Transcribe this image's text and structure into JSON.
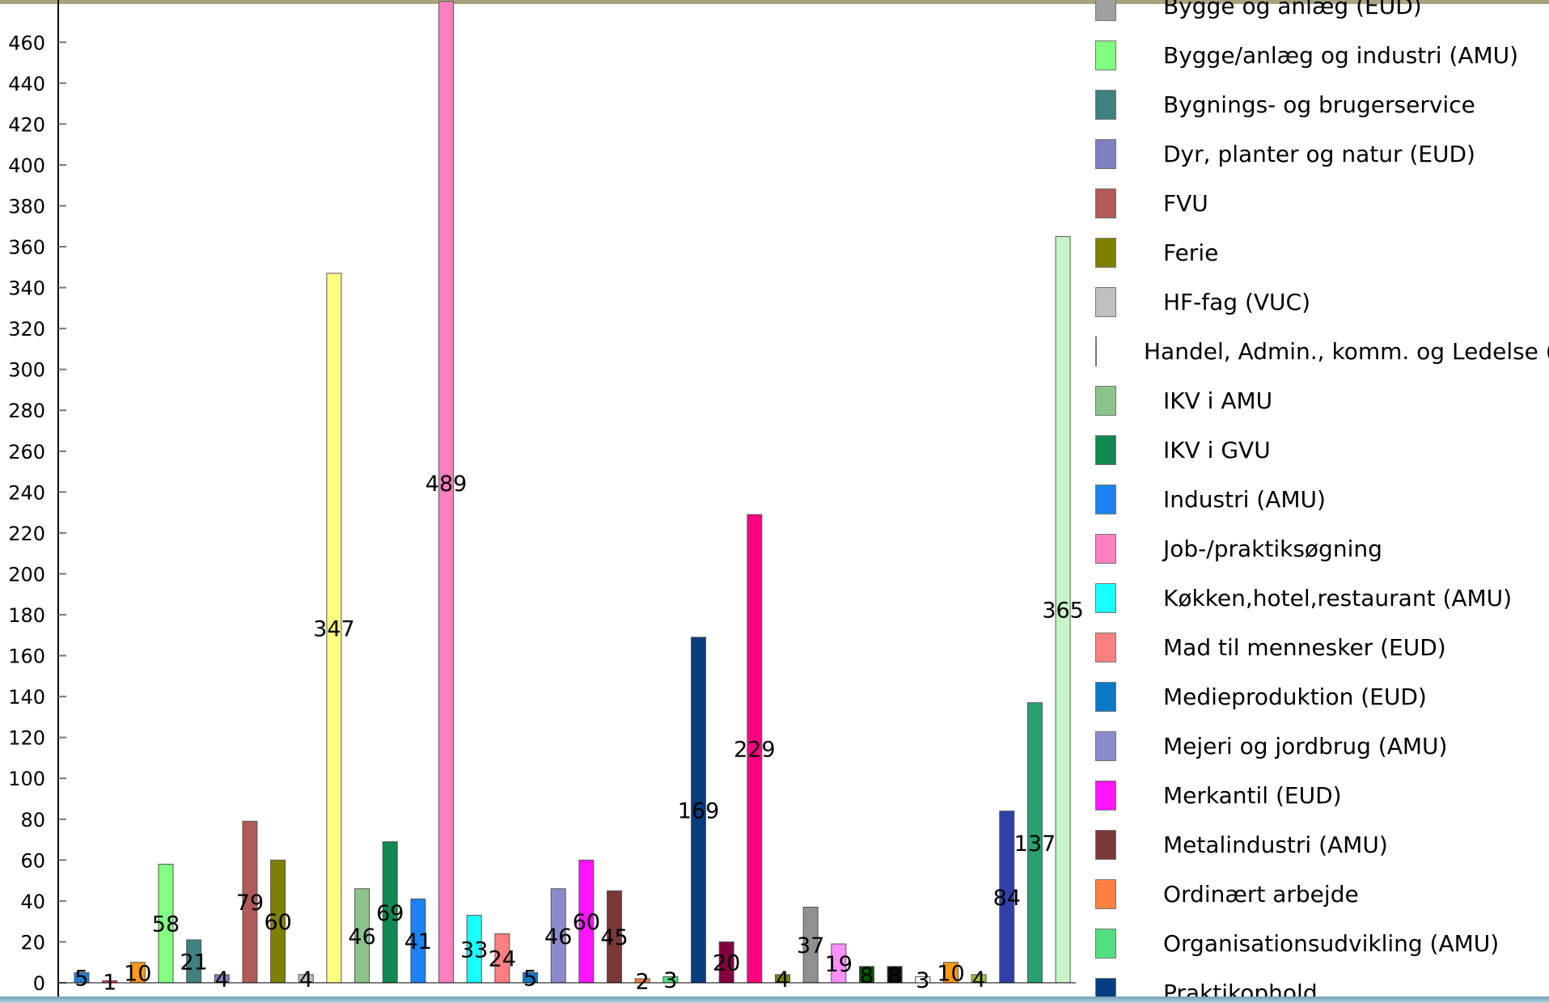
{
  "chart_data": {
    "type": "bar",
    "title": "",
    "xlabel": "",
    "ylabel": "",
    "ylim": [
      0,
      470
    ],
    "yticks": [
      0,
      20,
      40,
      60,
      80,
      100,
      120,
      140,
      160,
      180,
      200,
      220,
      240,
      260,
      280,
      300,
      320,
      340,
      360,
      380,
      400,
      420,
      440,
      460
    ],
    "grid": false,
    "legend_position": "right",
    "bars": [
      {
        "value": 5,
        "label": "5",
        "color": "#1f7fd1"
      },
      {
        "value": 1,
        "label": "1",
        "color": "#e8343c"
      },
      {
        "value": 10,
        "label": "10",
        "color": "#ff9a16"
      },
      {
        "value": 58,
        "label": "58",
        "color": "#82ff82"
      },
      {
        "value": 21,
        "label": "21",
        "color": "#3f8080"
      },
      {
        "value": 4,
        "label": "4",
        "color": "#8080c0"
      },
      {
        "value": 79,
        "label": "79",
        "color": "#b05a5a"
      },
      {
        "value": 60,
        "label": "60",
        "color": "#808000"
      },
      {
        "value": 4,
        "label": "4",
        "color": "#c0c0c0"
      },
      {
        "value": 347,
        "label": "347",
        "color": "#ffff80"
      },
      {
        "value": 46,
        "label": "46",
        "color": "#8cc48c"
      },
      {
        "value": 69,
        "label": "69",
        "color": "#108850"
      },
      {
        "value": 41,
        "label": "41",
        "color": "#1a82f5"
      },
      {
        "value": 489,
        "label": "489",
        "color": "#ff80c0"
      },
      {
        "value": 33,
        "label": "33",
        "color": "#1affff"
      },
      {
        "value": 24,
        "label": "24",
        "color": "#ff8080"
      },
      {
        "value": 5,
        "label": "5",
        "color": "#0a7ac8"
      },
      {
        "value": 46,
        "label": "46",
        "color": "#8b8bcb"
      },
      {
        "value": 60,
        "label": "60",
        "color": "#ff14ff"
      },
      {
        "value": 45,
        "label": "45",
        "color": "#7a3838"
      },
      {
        "value": 2,
        "label": "2",
        "color": "#ff8040"
      },
      {
        "value": 3,
        "label": "3",
        "color": "#50e080"
      },
      {
        "value": 169,
        "label": "169",
        "color": "#083e80"
      },
      {
        "value": 20,
        "label": "20",
        "color": "#800040"
      },
      {
        "value": 229,
        "label": "229",
        "color": "#ff0080"
      },
      {
        "value": 4,
        "label": "4",
        "color": "#808000"
      },
      {
        "value": 37,
        "label": "37",
        "color": "#909090"
      },
      {
        "value": 19,
        "label": "19",
        "color": "#ff90ff"
      },
      {
        "value": 8,
        "label": "8",
        "color": "#005800"
      },
      {
        "value": 8,
        "label": "8",
        "color": "#101010"
      },
      {
        "value": 3,
        "label": "3",
        "color": "#ffffff"
      },
      {
        "value": 10,
        "label": "10",
        "color": "#ff9a16"
      },
      {
        "value": 4,
        "label": "4",
        "color": "#a0c040"
      },
      {
        "value": 84,
        "label": "84",
        "color": "#3040a8"
      },
      {
        "value": 137,
        "label": "137",
        "color": "#28a070"
      },
      {
        "value": 365,
        "label": "365",
        "color": "#c8f5c8"
      }
    ]
  },
  "legend": {
    "items": [
      {
        "label": "Bygge og anlæg (EUD)",
        "color": "#a0a0a0"
      },
      {
        "label": "Bygge/anlæg og industri (AMU)",
        "color": "#80ff80"
      },
      {
        "label": "Bygnings- og brugerservice",
        "color": "#3f8080"
      },
      {
        "label": "Dyr, planter og natur (EUD)",
        "color": "#8080c0"
      },
      {
        "label": "FVU",
        "color": "#b05a5a"
      },
      {
        "label": "Ferie",
        "color": "#808000"
      },
      {
        "label": "HF-fag (VUC)",
        "color": "#c0c0c0"
      },
      {
        "label": "Handel, Admin., komm. og Ledelse (AMU)",
        "color": "#ffff80"
      },
      {
        "label": "IKV i AMU",
        "color": "#8cc48c"
      },
      {
        "label": "IKV i GVU",
        "color": "#108850"
      },
      {
        "label": "Industri (AMU)",
        "color": "#1a82f5"
      },
      {
        "label": "Job-/praktiksøgning",
        "color": "#ff80c0"
      },
      {
        "label": "Køkken,hotel,restaurant (AMU)",
        "color": "#1affff"
      },
      {
        "label": "Mad til mennesker (EUD)",
        "color": "#ff8080"
      },
      {
        "label": "Medieproduktion (EUD)",
        "color": "#0a7ac8"
      },
      {
        "label": "Mejeri og jordbrug (AMU)",
        "color": "#8b8bcb"
      },
      {
        "label": "Merkantil (EUD)",
        "color": "#ff14ff"
      },
      {
        "label": "Metalindustri (AMU)",
        "color": "#7a3838"
      },
      {
        "label": "Ordinært arbejde",
        "color": "#ff8040"
      },
      {
        "label": "Organisationsudvikling (AMU)",
        "color": "#50e080"
      },
      {
        "label": "Praktikophold",
        "color": "#083e80"
      }
    ]
  }
}
